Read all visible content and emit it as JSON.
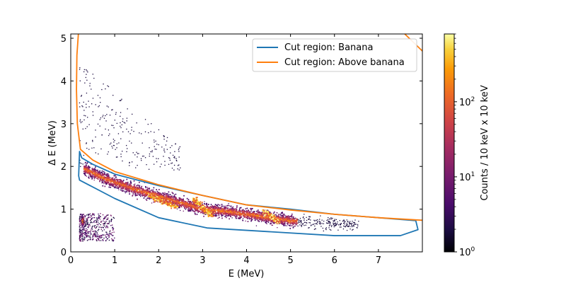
{
  "chart_data": {
    "type": "scatter",
    "title": "",
    "xlabel": "E (MeV)",
    "ylabel": "Δ E (MeV)",
    "xlim": [
      0,
      8
    ],
    "ylim": [
      0,
      5.1
    ],
    "x_ticks": [
      "0",
      "1",
      "2",
      "3",
      "4",
      "5",
      "6",
      "7"
    ],
    "y_ticks": [
      "0",
      "1",
      "2",
      "3",
      "4",
      "5"
    ],
    "grid": false,
    "legend_position": "top-right",
    "colorbar": {
      "label": "Counts / 10 keV x 10 keV",
      "scale": "log",
      "range": [
        1,
        800
      ],
      "colormap": "inferno",
      "ticks": [
        {
          "value": 1,
          "label": "10",
          "exp": "0"
        },
        {
          "value": 10,
          "label": "10",
          "exp": "1"
        },
        {
          "value": 100,
          "label": "10",
          "exp": "2"
        }
      ]
    },
    "series": [
      {
        "name": "Cut region: Banana",
        "kind": "polygon",
        "color": "#1f77b4",
        "points": [
          [
            0.2,
            2.35
          ],
          [
            0.25,
            2.2
          ],
          [
            0.5,
            2.05
          ],
          [
            1.0,
            1.82
          ],
          [
            2.0,
            1.55
          ],
          [
            3.0,
            1.32
          ],
          [
            4.0,
            1.1
          ],
          [
            5.0,
            1.0
          ],
          [
            6.0,
            0.88
          ],
          [
            7.0,
            0.8
          ],
          [
            7.85,
            0.73
          ],
          [
            7.9,
            0.52
          ],
          [
            7.5,
            0.38
          ],
          [
            6.0,
            0.38
          ],
          [
            3.1,
            0.56
          ],
          [
            2.0,
            0.8
          ],
          [
            1.0,
            1.25
          ],
          [
            0.2,
            1.68
          ],
          [
            0.18,
            1.78
          ],
          [
            0.2,
            2.35
          ]
        ]
      },
      {
        "name": "Cut region: Above banana",
        "kind": "polyline",
        "color": "#ff7f0e",
        "points": [
          [
            0.18,
            5.2
          ],
          [
            0.14,
            4.6
          ],
          [
            0.13,
            3.8
          ],
          [
            0.15,
            3.0
          ],
          [
            0.22,
            2.4
          ],
          [
            0.5,
            2.15
          ],
          [
            1.0,
            1.88
          ],
          [
            2.0,
            1.57
          ],
          [
            3.0,
            1.32
          ],
          [
            4.0,
            1.1
          ],
          [
            5.0,
            0.98
          ],
          [
            6.0,
            0.88
          ],
          [
            7.0,
            0.8
          ],
          [
            8.0,
            0.74
          ]
        ],
        "upper_points": [
          [
            7.55,
            5.15
          ],
          [
            8.0,
            4.7
          ]
        ]
      }
    ],
    "density_features": [
      {
        "description": "main hot band",
        "ridge": [
          [
            0.3,
            1.95
          ],
          [
            0.8,
            1.7
          ],
          [
            1.5,
            1.45
          ],
          [
            2.0,
            1.3
          ],
          [
            2.5,
            1.15
          ],
          [
            3.0,
            1.0
          ],
          [
            3.5,
            0.95
          ],
          [
            4.0,
            0.88
          ],
          [
            4.5,
            0.8
          ],
          [
            5.0,
            0.72
          ]
        ]
      },
      {
        "description": "hot streaks",
        "segments": [
          [
            [
              2.8,
              1.25
            ],
            [
              3.2,
              0.85
            ]
          ],
          [
            [
              4.4,
              0.95
            ],
            [
              4.7,
              0.7
            ]
          ],
          [
            [
              1.8,
              1.3
            ],
            [
              2.4,
              1.05
            ]
          ]
        ]
      },
      {
        "description": "low energy cluster",
        "x_range": [
          0.2,
          1.0
        ],
        "y_range": [
          0.25,
          0.9
        ]
      },
      {
        "description": "upper diffuse tail",
        "x_range": [
          0.2,
          2.5
        ],
        "y_range": [
          1.9,
          4.5
        ]
      }
    ]
  }
}
